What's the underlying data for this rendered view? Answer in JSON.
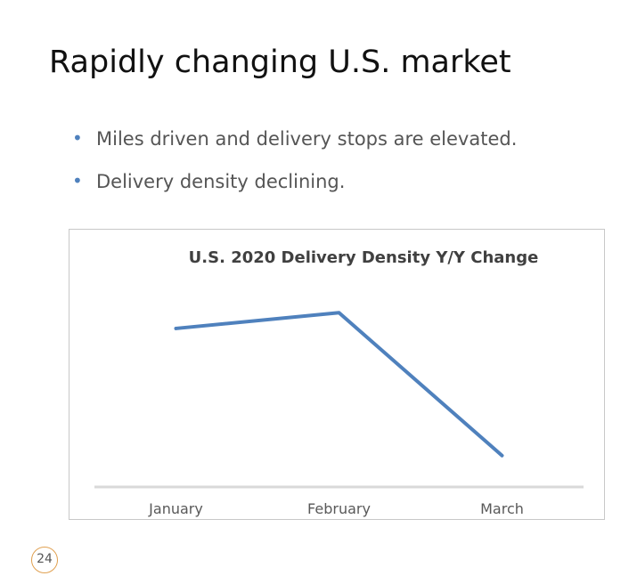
{
  "slide": {
    "title": "Rapidly changing U.S. market",
    "bullets": [
      "Miles driven and delivery stops are elevated.",
      "Delivery density declining."
    ],
    "bullet_glyph": "•",
    "page_number": "24"
  },
  "colors": {
    "bullet": "#4f81bd",
    "series_line": "#4f81bd",
    "axis": "#d9d9d9",
    "page_badge_border": "#e0a050"
  },
  "chart_data": {
    "type": "line",
    "title": "U.S. 2020 Delivery Density Y/Y Change",
    "categories": [
      "January",
      "February",
      "March"
    ],
    "series": [
      {
        "name": "Delivery Density Y/Y Change",
        "values": [
          0.89,
          1.0,
          0.0
        ]
      }
    ],
    "ylim": [
      -0.22,
      1.22
    ],
    "xlabel": "",
    "ylabel": "",
    "grid": false,
    "legend": "none"
  }
}
